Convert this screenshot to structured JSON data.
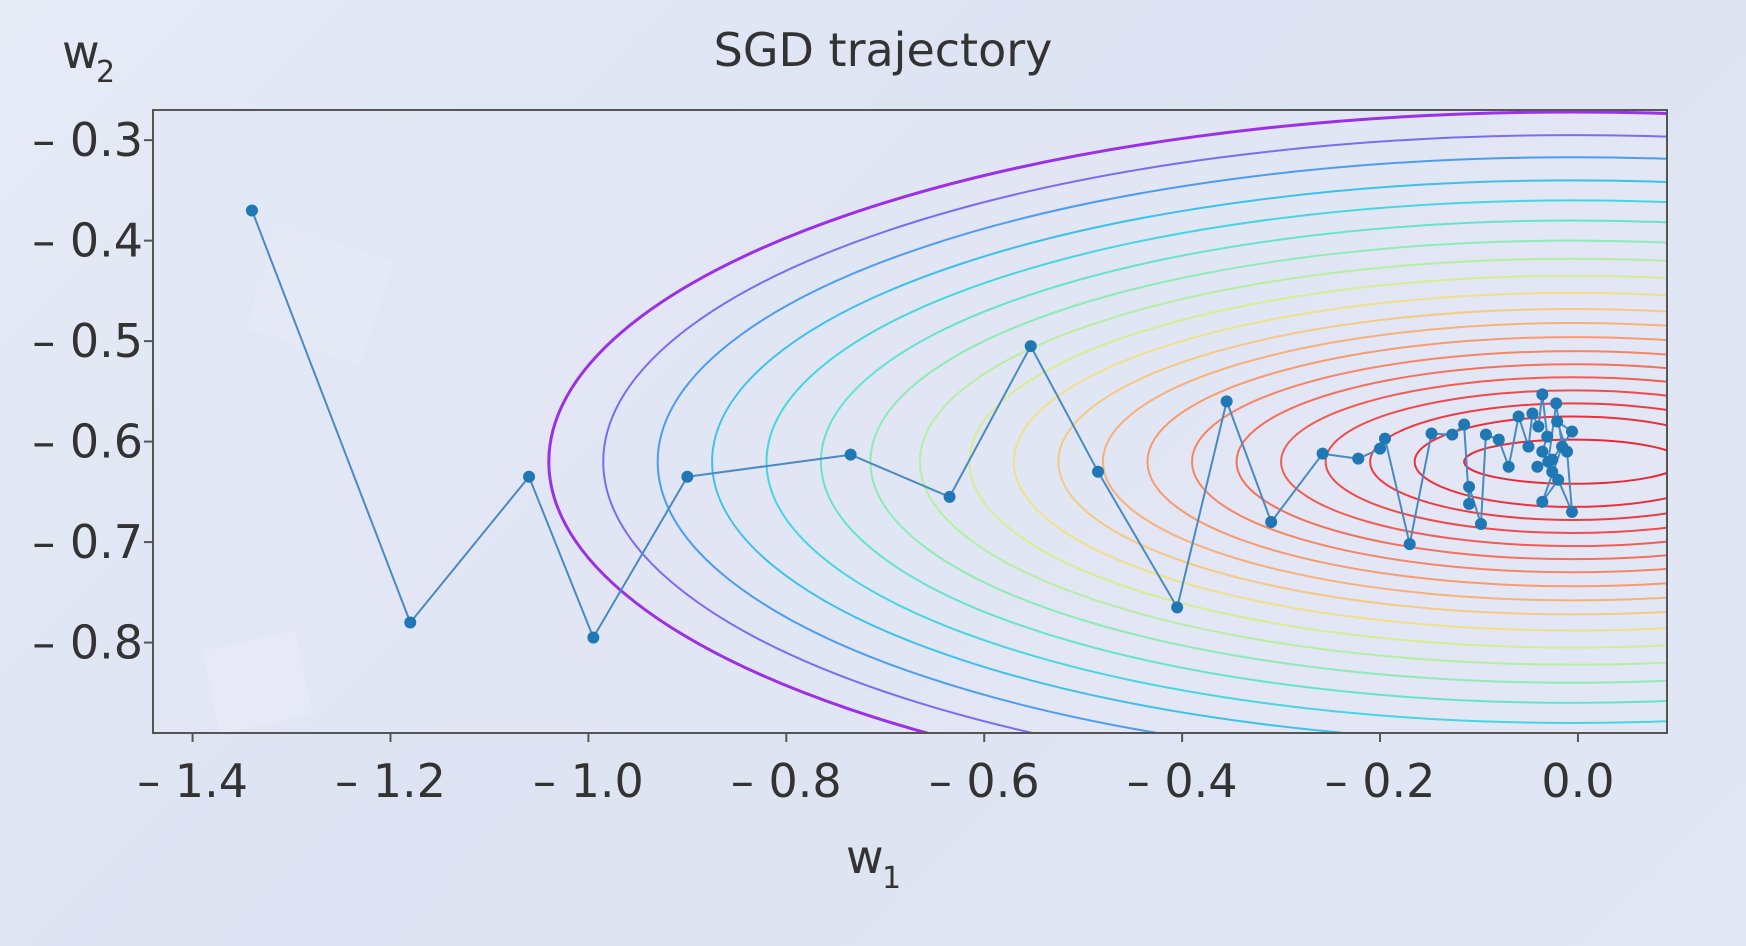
{
  "chart_data": {
    "type": "scatter",
    "title": "SGD trajectory",
    "xlabel_main": "w",
    "xlabel_sub": "1",
    "ylabel_main": "w",
    "ylabel_sub": "2",
    "xlim": [
      -1.44,
      0.09
    ],
    "ylim": [
      -0.89,
      -0.27
    ],
    "xticks": [
      {
        "value": -1.4,
        "label": "– 1.4"
      },
      {
        "value": -1.2,
        "label": "– 1.2"
      },
      {
        "value": -1.0,
        "label": "– 1.0"
      },
      {
        "value": -0.8,
        "label": "– 0.8"
      },
      {
        "value": -0.6,
        "label": "– 0.6"
      },
      {
        "value": -0.4,
        "label": "– 0.4"
      },
      {
        "value": -0.2,
        "label": "– 0.2"
      },
      {
        "value": 0.0,
        "label": "0.0"
      }
    ],
    "yticks": [
      {
        "value": -0.3,
        "label": "– 0.3"
      },
      {
        "value": -0.4,
        "label": "– 0.4"
      },
      {
        "value": -0.5,
        "label": "– 0.5"
      },
      {
        "value": -0.6,
        "label": "– 0.6"
      },
      {
        "value": -0.7,
        "label": "– 0.7"
      },
      {
        "value": -0.8,
        "label": "– 0.8"
      }
    ],
    "grid": false,
    "contour_center": [
      -0.005,
      -0.62
    ],
    "contour_levels": [
      {
        "a": 1.035,
        "b": 0.348,
        "color": "#9b30e6"
      },
      {
        "a": 0.98,
        "b": 0.325,
        "color": "#7a6ef0"
      },
      {
        "a": 0.925,
        "b": 0.303,
        "color": "#4b9cf2"
      },
      {
        "a": 0.87,
        "b": 0.28,
        "color": "#3cc1ea"
      },
      {
        "a": 0.815,
        "b": 0.26,
        "color": "#45d6df"
      },
      {
        "a": 0.76,
        "b": 0.24,
        "color": "#66e3cf"
      },
      {
        "a": 0.71,
        "b": 0.22,
        "color": "#8eebb8"
      },
      {
        "a": 0.66,
        "b": 0.202,
        "color": "#b6eea2"
      },
      {
        "a": 0.61,
        "b": 0.185,
        "color": "#d8ec92"
      },
      {
        "a": 0.565,
        "b": 0.168,
        "color": "#efe08a"
      },
      {
        "a": 0.52,
        "b": 0.152,
        "color": "#f6c882"
      },
      {
        "a": 0.475,
        "b": 0.138,
        "color": "#f8b079"
      },
      {
        "a": 0.43,
        "b": 0.124,
        "color": "#f89a6d"
      },
      {
        "a": 0.385,
        "b": 0.11,
        "color": "#f78563"
      },
      {
        "a": 0.34,
        "b": 0.097,
        "color": "#f5705a"
      },
      {
        "a": 0.295,
        "b": 0.084,
        "color": "#f35c52"
      },
      {
        "a": 0.25,
        "b": 0.071,
        "color": "#f14a4a"
      },
      {
        "a": 0.205,
        "b": 0.058,
        "color": "#ee3c42"
      },
      {
        "a": 0.16,
        "b": 0.045,
        "color": "#eb313c"
      },
      {
        "a": 0.11,
        "b": 0.022,
        "color": "#e82a36"
      }
    ],
    "series": [
      {
        "color": "#1f77b4",
        "points": [
          [
            -1.34,
            -0.37
          ],
          [
            -1.18,
            -0.78
          ],
          [
            -1.06,
            -0.635
          ],
          [
            -0.995,
            -0.795
          ],
          [
            -0.9,
            -0.635
          ],
          [
            -0.735,
            -0.613
          ],
          [
            -0.635,
            -0.655
          ],
          [
            -0.553,
            -0.505
          ],
          [
            -0.485,
            -0.63
          ],
          [
            -0.405,
            -0.765
          ],
          [
            -0.355,
            -0.56
          ],
          [
            -0.31,
            -0.68
          ],
          [
            -0.258,
            -0.612
          ],
          [
            -0.222,
            -0.617
          ],
          [
            -0.2,
            -0.607
          ],
          [
            -0.195,
            -0.597
          ],
          [
            -0.17,
            -0.702
          ],
          [
            -0.148,
            -0.592
          ],
          [
            -0.127,
            -0.593
          ],
          [
            -0.115,
            -0.583
          ],
          [
            -0.11,
            -0.662
          ],
          [
            -0.11,
            -0.645
          ],
          [
            -0.098,
            -0.682
          ],
          [
            -0.093,
            -0.593
          ],
          [
            -0.08,
            -0.598
          ],
          [
            -0.07,
            -0.625
          ],
          [
            -0.06,
            -0.575
          ],
          [
            -0.05,
            -0.605
          ],
          [
            -0.046,
            -0.572
          ],
          [
            -0.04,
            -0.585
          ],
          [
            -0.036,
            -0.553
          ],
          [
            -0.031,
            -0.595
          ],
          [
            -0.036,
            -0.61
          ],
          [
            -0.026,
            -0.63
          ],
          [
            -0.03,
            -0.62
          ],
          [
            -0.022,
            -0.562
          ],
          [
            -0.016,
            -0.605
          ],
          [
            -0.036,
            -0.66
          ],
          [
            -0.02,
            -0.638
          ],
          [
            -0.006,
            -0.67
          ],
          [
            -0.011,
            -0.61
          ],
          [
            -0.021,
            -0.58
          ],
          [
            -0.006,
            -0.59
          ],
          [
            -0.026,
            -0.618
          ],
          [
            -0.041,
            -0.625
          ]
        ]
      }
    ]
  }
}
